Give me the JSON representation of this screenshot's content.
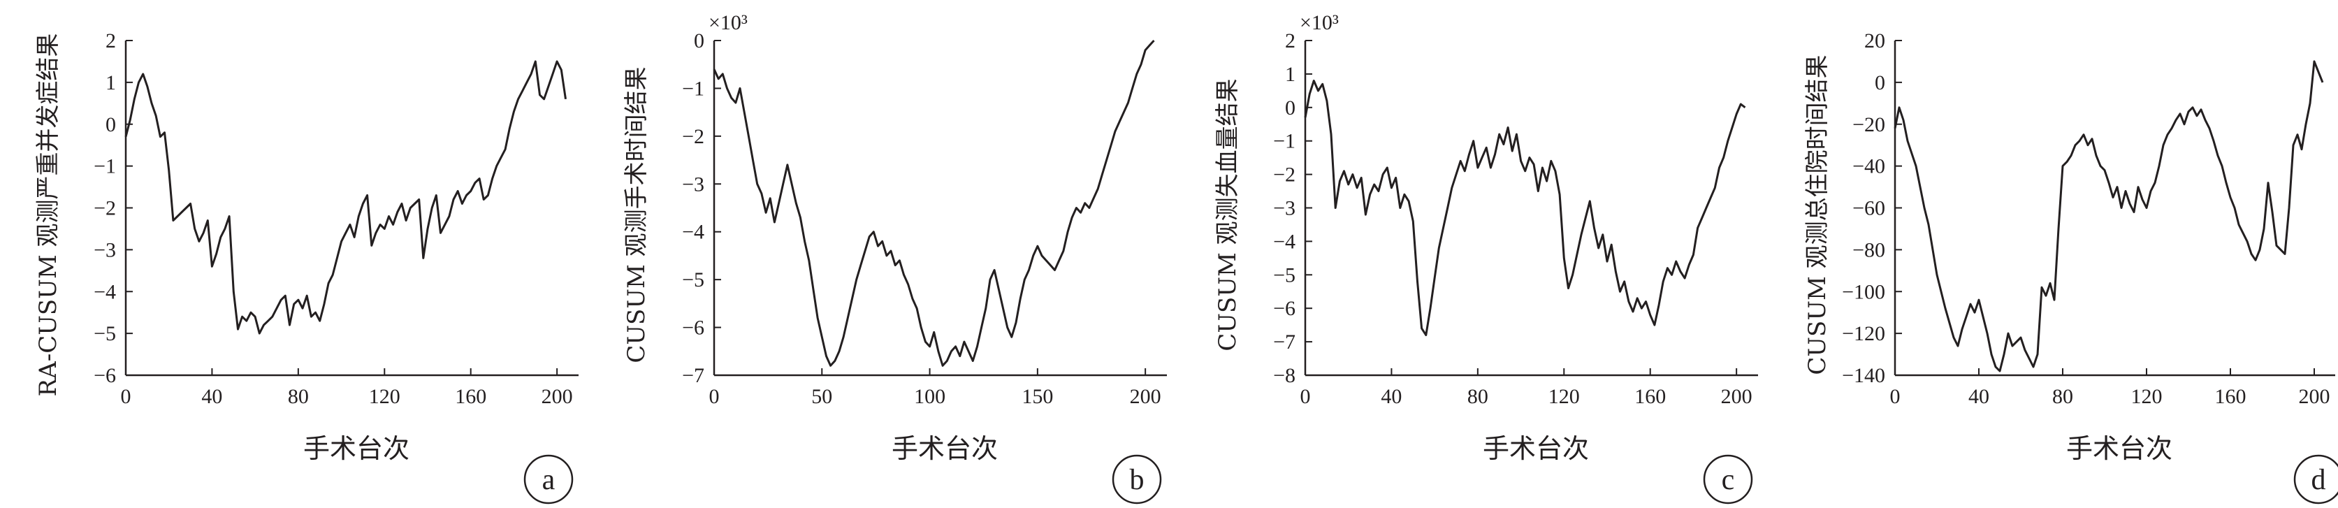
{
  "chart_data": [
    {
      "type": "line",
      "panel": "a",
      "xlabel": "手术台次",
      "ylabel": "RA-CUSUM 观测严重并发症结果",
      "multiplier": "",
      "xlim": [
        0,
        210
      ],
      "ylim": [
        -6,
        2
      ],
      "xticks": [
        0,
        40,
        80,
        120,
        160,
        200
      ],
      "yticks": [
        -6,
        -5,
        -4,
        -3,
        -2,
        -1,
        0,
        1,
        2
      ],
      "series": [
        {
          "x": [
            0,
            2,
            4,
            6,
            8,
            10,
            12,
            14,
            16,
            18,
            20,
            22,
            24,
            26,
            28,
            30,
            32,
            34,
            36,
            38,
            40,
            42,
            44,
            46,
            48,
            50,
            52,
            54,
            56,
            58,
            60,
            62,
            64,
            66,
            68,
            70,
            72,
            74,
            76,
            78,
            80,
            82,
            84,
            86,
            88,
            90,
            92,
            94,
            96,
            98,
            100,
            102,
            104,
            106,
            108,
            110,
            112,
            114,
            116,
            118,
            120,
            122,
            124,
            126,
            128,
            130,
            132,
            134,
            136,
            138,
            140,
            142,
            144,
            146,
            148,
            150,
            152,
            154,
            156,
            158,
            160,
            162,
            164,
            166,
            168,
            170,
            172,
            174,
            176,
            178,
            180,
            182,
            184,
            186,
            188,
            190,
            192,
            194,
            196,
            198,
            200,
            202,
            204
          ],
          "y": [
            -0.3,
            0.1,
            0.6,
            1.0,
            1.2,
            0.9,
            0.5,
            0.2,
            -0.3,
            -0.2,
            -1.1,
            -2.3,
            -2.2,
            -2.1,
            -2.0,
            -1.9,
            -2.5,
            -2.8,
            -2.6,
            -2.3,
            -3.4,
            -3.1,
            -2.7,
            -2.5,
            -2.2,
            -4.0,
            -4.9,
            -4.6,
            -4.7,
            -4.5,
            -4.6,
            -5.0,
            -4.8,
            -4.7,
            -4.6,
            -4.4,
            -4.2,
            -4.1,
            -4.8,
            -4.3,
            -4.2,
            -4.4,
            -4.1,
            -4.6,
            -4.5,
            -4.7,
            -4.3,
            -3.8,
            -3.6,
            -3.2,
            -2.8,
            -2.6,
            -2.4,
            -2.7,
            -2.2,
            -1.9,
            -1.7,
            -2.9,
            -2.6,
            -2.4,
            -2.5,
            -2.2,
            -2.4,
            -2.1,
            -1.9,
            -2.3,
            -2.0,
            -1.9,
            -1.8,
            -3.2,
            -2.5,
            -2.0,
            -1.7,
            -2.6,
            -2.4,
            -2.2,
            -1.8,
            -1.6,
            -1.9,
            -1.7,
            -1.6,
            -1.4,
            -1.3,
            -1.8,
            -1.7,
            -1.3,
            -1.0,
            -0.8,
            -0.6,
            -0.1,
            0.3,
            0.6,
            0.8,
            1.0,
            1.2,
            1.5,
            0.7,
            0.6,
            0.9,
            1.2,
            1.5,
            1.3,
            0.6
          ]
        }
      ]
    },
    {
      "type": "line",
      "panel": "b",
      "xlabel": "手术台次",
      "ylabel": "CUSUM 观测手术时间结果",
      "multiplier": "×10³",
      "xlim": [
        0,
        210
      ],
      "ylim": [
        -7,
        0
      ],
      "xticks": [
        0,
        50,
        100,
        150,
        200
      ],
      "yticks": [
        -7,
        -6,
        -5,
        -4,
        -3,
        -2,
        -1,
        0
      ],
      "series": [
        {
          "x": [
            0,
            2,
            4,
            6,
            8,
            10,
            12,
            14,
            16,
            18,
            20,
            22,
            24,
            26,
            28,
            30,
            32,
            34,
            36,
            38,
            40,
            42,
            44,
            46,
            48,
            50,
            52,
            54,
            56,
            58,
            60,
            62,
            64,
            66,
            68,
            70,
            72,
            74,
            76,
            78,
            80,
            82,
            84,
            86,
            88,
            90,
            92,
            94,
            96,
            98,
            100,
            102,
            104,
            106,
            108,
            110,
            112,
            114,
            116,
            118,
            120,
            122,
            124,
            126,
            128,
            130,
            132,
            134,
            136,
            138,
            140,
            142,
            144,
            146,
            148,
            150,
            152,
            154,
            156,
            158,
            160,
            162,
            164,
            166,
            168,
            170,
            172,
            174,
            176,
            178,
            180,
            182,
            184,
            186,
            188,
            190,
            192,
            194,
            196,
            198,
            200,
            202,
            204
          ],
          "y": [
            -0.6,
            -0.8,
            -0.7,
            -1.0,
            -1.2,
            -1.3,
            -1.0,
            -1.5,
            -2.0,
            -2.5,
            -3.0,
            -3.2,
            -3.6,
            -3.3,
            -3.8,
            -3.4,
            -3.0,
            -2.6,
            -3.0,
            -3.4,
            -3.7,
            -4.2,
            -4.6,
            -5.2,
            -5.8,
            -6.2,
            -6.6,
            -6.8,
            -6.7,
            -6.5,
            -6.2,
            -5.8,
            -5.4,
            -5.0,
            -4.7,
            -4.4,
            -4.1,
            -4.0,
            -4.3,
            -4.2,
            -4.5,
            -4.4,
            -4.7,
            -4.6,
            -4.9,
            -5.1,
            -5.4,
            -5.6,
            -6.0,
            -6.3,
            -6.4,
            -6.1,
            -6.5,
            -6.8,
            -6.7,
            -6.5,
            -6.4,
            -6.6,
            -6.3,
            -6.5,
            -6.7,
            -6.4,
            -6.0,
            -5.6,
            -5.0,
            -4.8,
            -5.2,
            -5.6,
            -6.0,
            -6.2,
            -5.9,
            -5.4,
            -5.0,
            -4.8,
            -4.5,
            -4.3,
            -4.5,
            -4.6,
            -4.7,
            -4.8,
            -4.6,
            -4.4,
            -4.0,
            -3.7,
            -3.5,
            -3.6,
            -3.4,
            -3.5,
            -3.3,
            -3.1,
            -2.8,
            -2.5,
            -2.2,
            -1.9,
            -1.7,
            -1.5,
            -1.3,
            -1.0,
            -0.7,
            -0.5,
            -0.2,
            -0.1,
            0.0
          ]
        }
      ]
    },
    {
      "type": "line",
      "panel": "c",
      "xlabel": "手术台次",
      "ylabel": "CUSUM 观测失血量结果",
      "multiplier": "×10³",
      "xlim": [
        0,
        210
      ],
      "ylim": [
        -8,
        2
      ],
      "xticks": [
        0,
        40,
        80,
        120,
        160,
        200
      ],
      "yticks": [
        -8,
        -7,
        -6,
        -5,
        -4,
        -3,
        -2,
        -1,
        0,
        1,
        2
      ],
      "series": [
        {
          "x": [
            0,
            2,
            4,
            6,
            8,
            10,
            12,
            14,
            16,
            18,
            20,
            22,
            24,
            26,
            28,
            30,
            32,
            34,
            36,
            38,
            40,
            42,
            44,
            46,
            48,
            50,
            52,
            54,
            56,
            58,
            60,
            62,
            64,
            66,
            68,
            70,
            72,
            74,
            76,
            78,
            80,
            82,
            84,
            86,
            88,
            90,
            92,
            94,
            96,
            98,
            100,
            102,
            104,
            106,
            108,
            110,
            112,
            114,
            116,
            118,
            120,
            122,
            124,
            126,
            128,
            130,
            132,
            134,
            136,
            138,
            140,
            142,
            144,
            146,
            148,
            150,
            152,
            154,
            156,
            158,
            160,
            162,
            164,
            166,
            168,
            170,
            172,
            174,
            176,
            178,
            180,
            182,
            184,
            186,
            188,
            190,
            192,
            194,
            196,
            198,
            200,
            202,
            204
          ],
          "y": [
            -0.3,
            0.4,
            0.8,
            0.5,
            0.7,
            0.2,
            -0.8,
            -3.0,
            -2.2,
            -1.9,
            -2.3,
            -2.0,
            -2.4,
            -2.1,
            -3.2,
            -2.6,
            -2.3,
            -2.5,
            -2.0,
            -1.8,
            -2.4,
            -2.1,
            -3.0,
            -2.6,
            -2.8,
            -3.4,
            -5.2,
            -6.6,
            -6.8,
            -6.0,
            -5.1,
            -4.2,
            -3.6,
            -3.0,
            -2.4,
            -2.0,
            -1.6,
            -1.9,
            -1.4,
            -1.0,
            -1.8,
            -1.5,
            -1.2,
            -1.8,
            -1.4,
            -0.8,
            -1.1,
            -0.6,
            -1.3,
            -0.8,
            -1.6,
            -1.9,
            -1.5,
            -1.7,
            -2.5,
            -1.8,
            -2.2,
            -1.6,
            -1.9,
            -2.6,
            -4.5,
            -5.4,
            -5.0,
            -4.4,
            -3.8,
            -3.3,
            -2.8,
            -3.6,
            -4.2,
            -3.8,
            -4.6,
            -4.1,
            -4.9,
            -5.5,
            -5.2,
            -5.8,
            -6.1,
            -5.7,
            -6.0,
            -5.8,
            -6.2,
            -6.5,
            -5.9,
            -5.2,
            -4.8,
            -5.0,
            -4.6,
            -4.9,
            -5.1,
            -4.7,
            -4.4,
            -3.6,
            -3.3,
            -3.0,
            -2.7,
            -2.4,
            -1.8,
            -1.5,
            -1.0,
            -0.6,
            -0.2,
            0.1,
            0.0
          ]
        }
      ]
    },
    {
      "type": "line",
      "panel": "d",
      "xlabel": "手术台次",
      "ylabel": "CUSUM 观测总住院时间结果",
      "multiplier": "",
      "xlim": [
        0,
        210
      ],
      "ylim": [
        -140,
        20
      ],
      "xticks": [
        0,
        40,
        80,
        120,
        160,
        200
      ],
      "yticks": [
        -140,
        -120,
        -100,
        -80,
        -60,
        -40,
        -20,
        0,
        20
      ],
      "series": [
        {
          "x": [
            0,
            2,
            4,
            6,
            8,
            10,
            12,
            14,
            16,
            18,
            20,
            22,
            24,
            26,
            28,
            30,
            32,
            34,
            36,
            38,
            40,
            42,
            44,
            46,
            48,
            50,
            52,
            54,
            56,
            58,
            60,
            62,
            64,
            66,
            68,
            70,
            72,
            74,
            76,
            78,
            80,
            82,
            84,
            86,
            88,
            90,
            92,
            94,
            96,
            98,
            100,
            102,
            104,
            106,
            108,
            110,
            112,
            114,
            116,
            118,
            120,
            122,
            124,
            126,
            128,
            130,
            132,
            134,
            136,
            138,
            140,
            142,
            144,
            146,
            148,
            150,
            152,
            154,
            156,
            158,
            160,
            162,
            164,
            166,
            168,
            170,
            172,
            174,
            176,
            178,
            180,
            182,
            184,
            186,
            188,
            190,
            192,
            194,
            196,
            198,
            200,
            202,
            204
          ],
          "y": [
            -22,
            -12,
            -18,
            -28,
            -34,
            -40,
            -50,
            -60,
            -68,
            -80,
            -92,
            -100,
            -108,
            -115,
            -122,
            -126,
            -118,
            -112,
            -106,
            -110,
            -104,
            -112,
            -120,
            -130,
            -136,
            -138,
            -130,
            -120,
            -126,
            -124,
            -122,
            -128,
            -132,
            -136,
            -130,
            -98,
            -102,
            -96,
            -104,
            -70,
            -40,
            -38,
            -35,
            -30,
            -28,
            -25,
            -30,
            -27,
            -35,
            -40,
            -42,
            -48,
            -55,
            -50,
            -60,
            -52,
            -58,
            -62,
            -50,
            -56,
            -60,
            -52,
            -48,
            -40,
            -30,
            -25,
            -22,
            -18,
            -15,
            -20,
            -14,
            -12,
            -16,
            -13,
            -18,
            -22,
            -28,
            -35,
            -40,
            -48,
            -55,
            -60,
            -68,
            -72,
            -76,
            -82,
            -85,
            -80,
            -70,
            -48,
            -62,
            -78,
            -80,
            -82,
            -60,
            -30,
            -25,
            -32,
            -20,
            -10,
            10,
            5,
            0
          ]
        }
      ]
    }
  ]
}
